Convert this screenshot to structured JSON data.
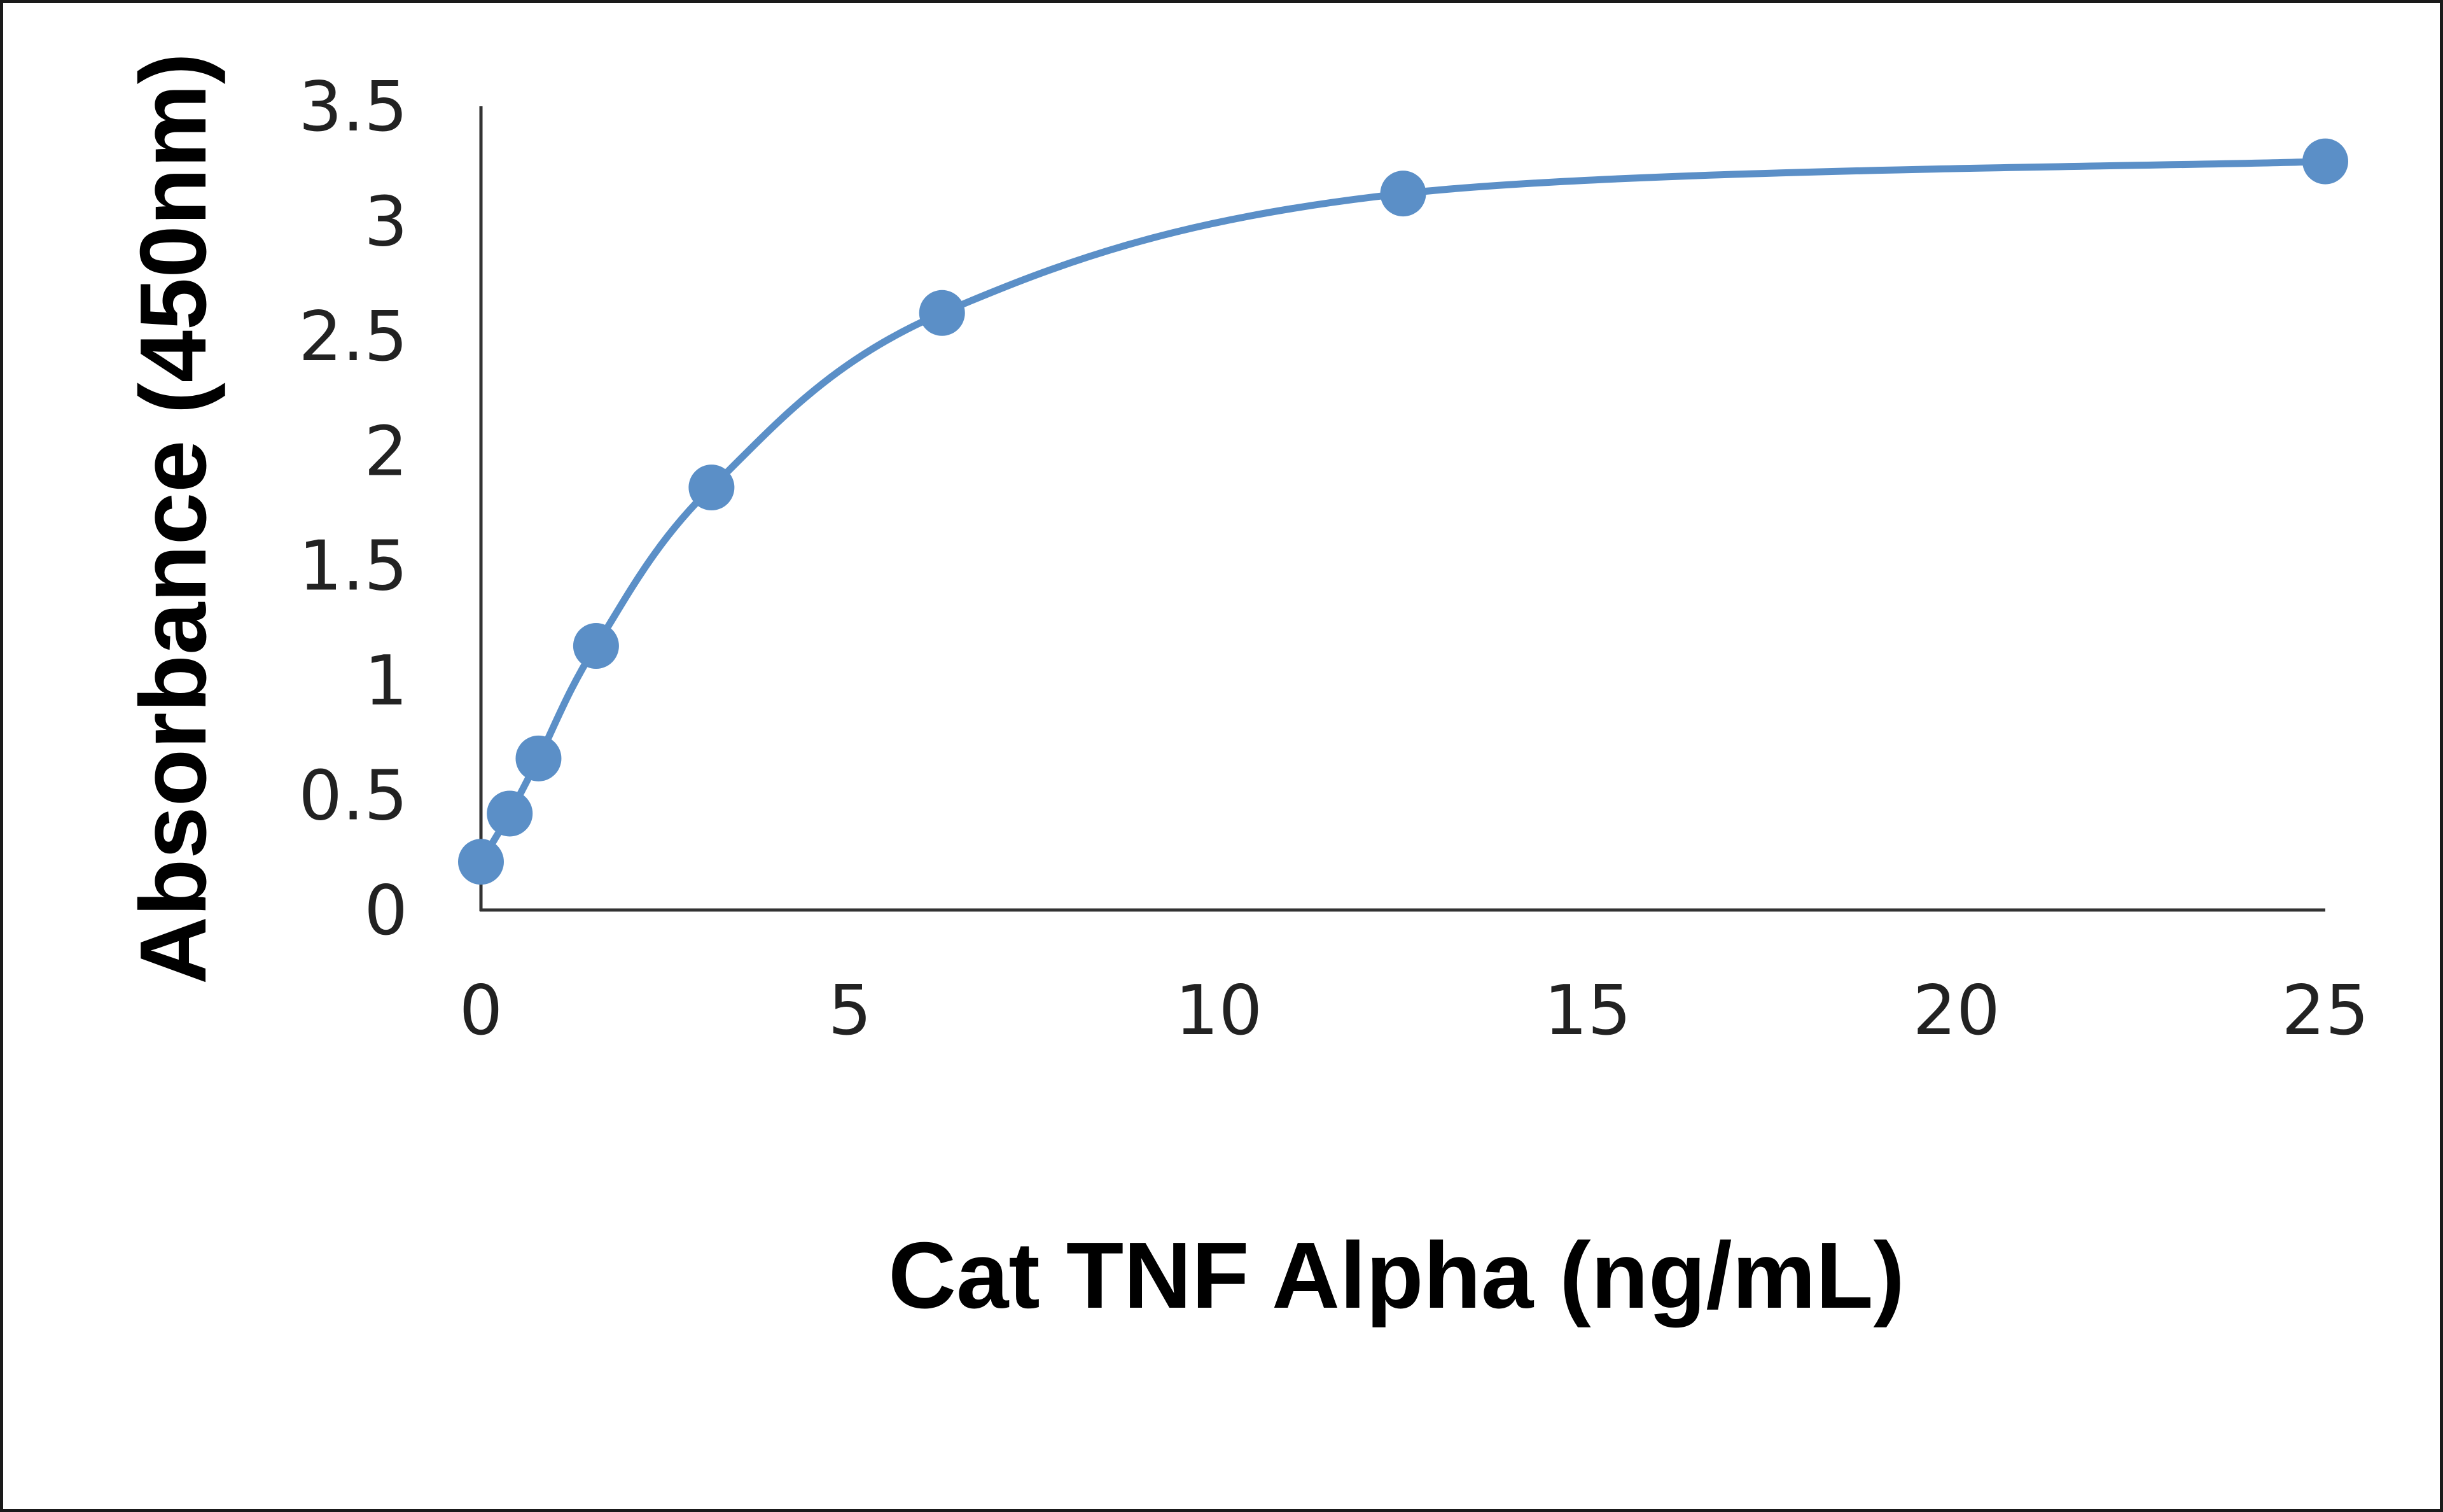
{
  "chart_data": {
    "type": "scatter",
    "title": "",
    "xlabel": "Cat TNF Alpha (ng/mL)",
    "ylabel": "Absorbance (450nm)",
    "xlim": [
      0,
      25
    ],
    "ylim": [
      0,
      3.5
    ],
    "x_ticks": [
      "0",
      "5",
      "10",
      "15",
      "20",
      "25"
    ],
    "y_ticks": [
      "0",
      "0.5",
      "1",
      "1.5",
      "2",
      "2.5",
      "3",
      "3.5"
    ],
    "grid": false,
    "legend": "none",
    "smooth_line": true,
    "series": [
      {
        "x": [
          0,
          0.39,
          0.78,
          1.56,
          3.125,
          6.25,
          12.5,
          25
        ],
        "y": [
          0.21,
          0.42,
          0.66,
          1.15,
          1.84,
          2.6,
          3.12,
          3.26
        ],
        "color": "#5b8fc7"
      }
    ]
  }
}
